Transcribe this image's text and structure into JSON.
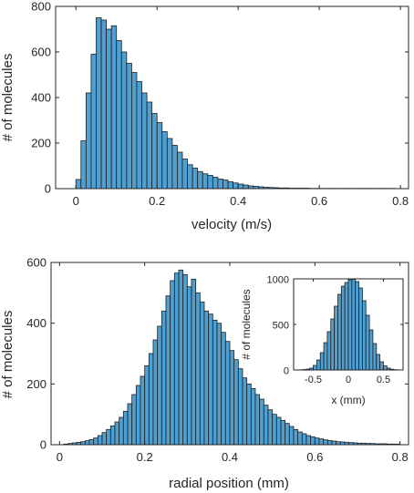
{
  "chart_data": [
    {
      "type": "bar",
      "xlabel": "velocity (m/s)",
      "ylabel": "# of molecules",
      "xlim": [
        -0.05,
        0.82
      ],
      "ylim": [
        0,
        800
      ],
      "xticks": [
        0,
        0.2,
        0.4,
        0.6,
        0.8
      ],
      "xtick_labels": [
        "0",
        "0.2",
        "0.4",
        "0.6",
        "0.8"
      ],
      "yticks": [
        0,
        200,
        400,
        600,
        800
      ],
      "ytick_labels": [
        "0",
        "200",
        "400",
        "600",
        "800"
      ],
      "bin_edges_start": 0,
      "bin_width": 0.0125,
      "values": [
        40,
        210,
        420,
        590,
        750,
        740,
        700,
        715,
        650,
        600,
        550,
        510,
        470,
        420,
        380,
        330,
        290,
        250,
        220,
        190,
        160,
        130,
        105,
        90,
        75,
        65,
        58,
        50,
        42,
        38,
        30,
        25,
        20,
        16,
        12,
        10,
        8,
        6,
        5,
        4,
        3,
        3,
        2,
        2,
        2,
        2,
        1,
        1,
        1,
        1,
        1,
        1,
        1,
        1,
        1,
        1,
        1,
        1,
        1,
        1,
        1,
        1,
        1
      ],
      "color": "#4f9fd1",
      "grid": false
    },
    {
      "type": "bar",
      "xlabel": "radial position (mm)",
      "ylabel": "# of molecules",
      "xlim": [
        -0.02,
        0.82
      ],
      "ylim": [
        0,
        600
      ],
      "xticks": [
        0,
        0.2,
        0.4,
        0.6,
        0.8
      ],
      "xtick_labels": [
        "0",
        "0.2",
        "0.4",
        "0.6",
        "0.8"
      ],
      "yticks": [
        0,
        200,
        400,
        600
      ],
      "ytick_labels": [
        "0",
        "200",
        "400",
        "600"
      ],
      "bin_edges_start": 0.0,
      "bin_width": 0.01,
      "values": [
        0,
        2,
        4,
        6,
        8,
        10,
        13,
        17,
        22,
        30,
        40,
        50,
        62,
        75,
        90,
        110,
        135,
        165,
        195,
        225,
        260,
        300,
        345,
        390,
        440,
        490,
        540,
        565,
        575,
        560,
        520,
        545,
        500,
        470,
        440,
        430,
        410,
        400,
        370,
        340,
        310,
        280,
        250,
        220,
        200,
        185,
        165,
        150,
        130,
        115,
        100,
        90,
        80,
        70,
        60,
        50,
        42,
        36,
        30,
        26,
        22,
        19,
        16,
        14,
        12,
        10,
        9,
        8,
        7,
        6,
        5,
        5,
        4,
        4,
        3,
        3,
        3,
        2,
        2,
        2
      ],
      "color": "#4f9fd1",
      "grid": false,
      "inset": {
        "type": "bar",
        "xlabel": "x (mm)",
        "ylabel": "# of molecules",
        "xlim": [
          -0.78,
          0.78
        ],
        "ylim": [
          0,
          1000
        ],
        "xticks": [
          -0.5,
          0,
          0.5
        ],
        "xtick_labels": [
          "-0.5",
          "0",
          "0.5"
        ],
        "yticks": [
          0,
          500,
          1000
        ],
        "ytick_labels": [
          "0",
          "500",
          "1000"
        ],
        "bin_edges_start": -0.7,
        "bin_width": 0.05,
        "values": [
          2,
          5,
          10,
          20,
          50,
          110,
          190,
          300,
          420,
          560,
          700,
          830,
          920,
          960,
          990,
          995,
          970,
          900,
          760,
          600,
          440,
          290,
          170,
          90,
          45,
          20,
          8,
          3
        ],
        "color": "#4f9fd1"
      }
    }
  ]
}
